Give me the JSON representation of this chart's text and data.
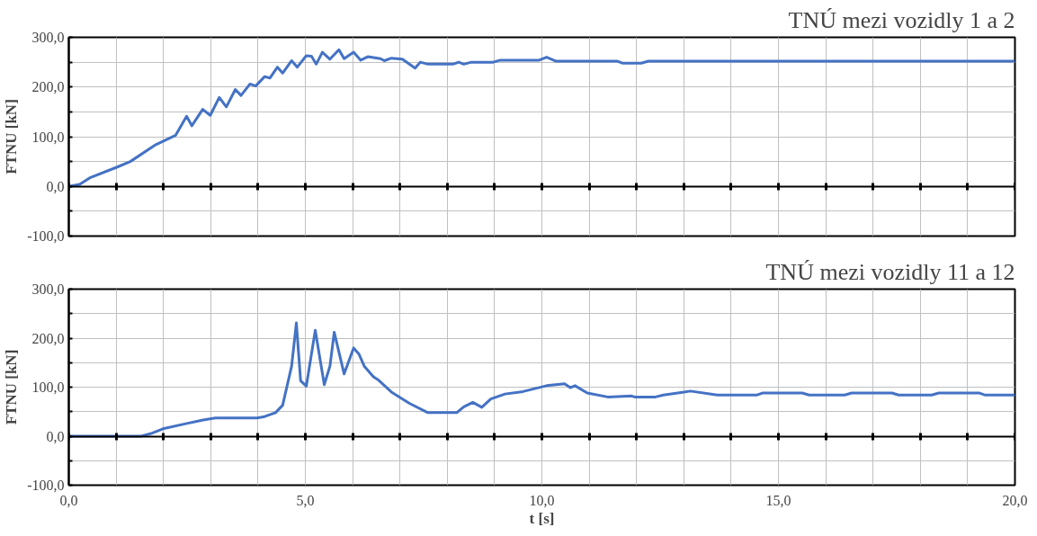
{
  "chart_data": [
    {
      "type": "line",
      "title": "TNÚ mezi vozidly 1 a 2",
      "ylabel": "FTNU [kN]",
      "tick_labels": "y",
      "grid": true,
      "marker": "none",
      "line_style": "solid",
      "xlim": [
        0,
        20
      ],
      "ylim": [
        -100,
        300
      ],
      "xticks": [
        {
          "value": 0,
          "label": null
        },
        {
          "value": 1,
          "label": null
        },
        {
          "value": 2,
          "label": null
        },
        {
          "value": 3,
          "label": null
        },
        {
          "value": 4,
          "label": null
        },
        {
          "value": 5,
          "label": null
        },
        {
          "value": 6,
          "label": null
        },
        {
          "value": 7,
          "label": null
        },
        {
          "value": 8,
          "label": null
        },
        {
          "value": 9,
          "label": null
        },
        {
          "value": 10,
          "label": null
        },
        {
          "value": 11,
          "label": null
        },
        {
          "value": 12,
          "label": null
        },
        {
          "value": 13,
          "label": null
        },
        {
          "value": 14,
          "label": null
        },
        {
          "value": 15,
          "label": null
        },
        {
          "value": 16,
          "label": null
        },
        {
          "value": 17,
          "label": null
        },
        {
          "value": 18,
          "label": null
        },
        {
          "value": 19,
          "label": null
        },
        {
          "value": 20,
          "label": null
        }
      ],
      "yticks": [
        {
          "value": -100,
          "label": "-100,0"
        },
        {
          "value": -50,
          "label": null
        },
        {
          "value": 0,
          "label": "0,0"
        },
        {
          "value": 50,
          "label": null
        },
        {
          "value": 100,
          "label": "100,0"
        },
        {
          "value": 150,
          "label": null
        },
        {
          "value": 200,
          "label": "200,0"
        },
        {
          "value": 250,
          "label": null
        },
        {
          "value": 300,
          "label": "300,0"
        }
      ],
      "series": [
        {
          "color": "#4472c4",
          "x": [
            0,
            0.23,
            0.46,
            1.0,
            1.3,
            1.84,
            2.26,
            2.49,
            2.6,
            2.83,
            2.99,
            3.18,
            3.33,
            3.52,
            3.64,
            3.83,
            3.95,
            4.14,
            4.25,
            4.41,
            4.52,
            4.71,
            4.83,
            5.02,
            5.13,
            5.23,
            5.36,
            5.52,
            5.71,
            5.82,
            6.02,
            6.17,
            6.32,
            6.59,
            6.67,
            6.82,
            7.05,
            7.32,
            7.43,
            7.59,
            8.12,
            8.24,
            8.35,
            8.51,
            8.97,
            9.12,
            9.94,
            10.1,
            10.3,
            11.6,
            11.7,
            12.1,
            12.25,
            20
          ],
          "values": [
            0,
            4,
            18,
            38,
            50,
            84,
            103,
            141,
            122,
            155,
            143,
            179,
            160,
            195,
            183,
            206,
            202,
            221,
            218,
            240,
            228,
            253,
            240,
            263,
            262,
            246,
            270,
            256,
            275,
            257,
            270,
            254,
            261,
            257,
            253,
            258,
            256,
            238,
            250,
            246,
            246,
            250,
            246,
            250,
            250,
            254,
            254,
            260,
            252,
            252,
            248,
            248,
            252,
            252
          ]
        }
      ]
    },
    {
      "type": "line",
      "title": "TNÚ mezi vozidly 11 a 12",
      "ylabel": "FTNU [kN]",
      "xlabel": "t [s]",
      "grid": true,
      "marker": "none",
      "line_style": "solid",
      "xlim": [
        0,
        20
      ],
      "ylim": [
        -100,
        300
      ],
      "xticks": [
        {
          "value": 0,
          "label": "0,0"
        },
        {
          "value": 1,
          "label": null
        },
        {
          "value": 2,
          "label": null
        },
        {
          "value": 3,
          "label": null
        },
        {
          "value": 4,
          "label": null
        },
        {
          "value": 5,
          "label": "5,0"
        },
        {
          "value": 6,
          "label": null
        },
        {
          "value": 7,
          "label": null
        },
        {
          "value": 8,
          "label": null
        },
        {
          "value": 9,
          "label": null
        },
        {
          "value": 10,
          "label": "10,0"
        },
        {
          "value": 11,
          "label": null
        },
        {
          "value": 12,
          "label": null
        },
        {
          "value": 13,
          "label": null
        },
        {
          "value": 14,
          "label": null
        },
        {
          "value": 15,
          "label": "15,0"
        },
        {
          "value": 16,
          "label": null
        },
        {
          "value": 17,
          "label": null
        },
        {
          "value": 18,
          "label": null
        },
        {
          "value": 19,
          "label": null
        },
        {
          "value": 20,
          "label": "20,0"
        }
      ],
      "yticks": [
        {
          "value": -100,
          "label": "-100,0"
        },
        {
          "value": -50,
          "label": null
        },
        {
          "value": 0,
          "label": "0,0"
        },
        {
          "value": 50,
          "label": null
        },
        {
          "value": 100,
          "label": "100,0"
        },
        {
          "value": 150,
          "label": null
        },
        {
          "value": 200,
          "label": "200,0"
        },
        {
          "value": 250,
          "label": null
        },
        {
          "value": 300,
          "label": "300,0"
        }
      ],
      "series": [
        {
          "color": "#4472c4",
          "x": [
            0,
            1.53,
            1.76,
            1.99,
            2.45,
            2.84,
            3.1,
            3.98,
            4.14,
            4.37,
            4.52,
            4.71,
            4.81,
            4.9,
            5.02,
            5.21,
            5.4,
            5.52,
            5.61,
            5.82,
            6.02,
            6.13,
            6.25,
            6.44,
            6.55,
            6.82,
            7.2,
            7.59,
            8.2,
            8.35,
            8.54,
            8.73,
            8.92,
            9.22,
            9.6,
            10.1,
            10.48,
            10.6,
            10.7,
            10.96,
            11.39,
            11.9,
            11.96,
            12.4,
            12.57,
            13.14,
            13.71,
            14.55,
            14.66,
            15.5,
            15.65,
            16.4,
            16.55,
            17.4,
            17.54,
            18.24,
            18.39,
            19.25,
            19.36,
            20
          ],
          "values": [
            0,
            0,
            6,
            15,
            25,
            33,
            37,
            37,
            40,
            48,
            63,
            143,
            231,
            113,
            102,
            216,
            105,
            143,
            212,
            127,
            180,
            168,
            142,
            121,
            114,
            90,
            67,
            48,
            48,
            60,
            69,
            59,
            76,
            86,
            91,
            103,
            107,
            99,
            103,
            88,
            80,
            82,
            80,
            80,
            84,
            92,
            84,
            84,
            88,
            88,
            84,
            84,
            88,
            88,
            84,
            84,
            88,
            88,
            84,
            84
          ]
        }
      ]
    }
  ]
}
